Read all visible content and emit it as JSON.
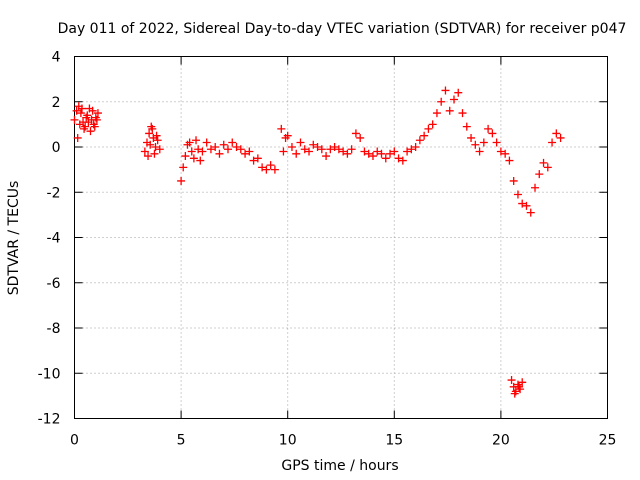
{
  "chart_data": {
    "type": "scatter",
    "title": "Day 011 of 2022, Sidereal Day-to-day VTEC variation (SDTVAR) for receiver p047",
    "xlabel": "GPS time / hours",
    "ylabel": "SDTVAR / TECUs",
    "xlim": [
      0,
      25
    ],
    "ylim": [
      -12,
      4
    ],
    "xticks": [
      0,
      5,
      10,
      15,
      20,
      25
    ],
    "yticks": [
      -12,
      -10,
      -8,
      -6,
      -4,
      -2,
      0,
      2,
      4
    ],
    "grid": true,
    "marker": "plus",
    "color": "#ff0000",
    "series": [
      {
        "name": "SDTVAR",
        "segments": [
          {
            "x": [
              0.0,
              0.1,
              0.2,
              0.3,
              0.4,
              0.5,
              0.6,
              0.7,
              0.8,
              0.9,
              1.0,
              1.1,
              0.15,
              0.25,
              0.35,
              0.45,
              0.55,
              0.65,
              0.75,
              0.85,
              0.95,
              1.05
            ],
            "y": [
              1.2,
              1.6,
              1.8,
              1.5,
              1.1,
              0.9,
              1.4,
              1.7,
              1.2,
              1.0,
              1.3,
              1.5,
              0.4,
              1.0,
              1.7,
              0.8,
              1.3,
              1.1,
              0.7,
              1.6,
              0.9,
              1.2
            ]
          },
          {
            "x": [
              3.3,
              3.4,
              3.5,
              3.6,
              3.7,
              3.8,
              3.9,
              4.0,
              3.45,
              3.55,
              3.65,
              3.75,
              3.85
            ],
            "y": [
              -0.2,
              0.2,
              0.6,
              0.9,
              0.4,
              0.0,
              0.3,
              -0.1,
              -0.4,
              0.1,
              0.8,
              -0.3,
              0.5
            ]
          },
          {
            "x": [
              5.0,
              5.1,
              5.2,
              5.3,
              5.4,
              5.5,
              5.6,
              5.7,
              5.8,
              5.9,
              6.0,
              6.2,
              6.4,
              6.6,
              6.8,
              7.0,
              7.2,
              7.4,
              7.6,
              7.8,
              8.0,
              8.2,
              8.4,
              8.6,
              8.8,
              9.0,
              9.2,
              9.4
            ],
            "y": [
              -1.5,
              -0.9,
              -0.4,
              0.1,
              0.2,
              -0.2,
              -0.5,
              0.3,
              -0.1,
              -0.6,
              -0.2,
              0.2,
              -0.1,
              0.0,
              -0.3,
              0.1,
              -0.1,
              0.2,
              0.0,
              -0.1,
              -0.3,
              -0.2,
              -0.6,
              -0.5,
              -0.9,
              -1.0,
              -0.8,
              -1.0
            ]
          },
          {
            "x": [
              9.7,
              9.8,
              9.9,
              10.0,
              10.2,
              10.4,
              10.6,
              10.8,
              11.0,
              11.2,
              11.4,
              11.6,
              11.8,
              12.0,
              12.2,
              12.4,
              12.6,
              12.8,
              13.0,
              13.2,
              13.4,
              13.6,
              13.8,
              14.0,
              14.2,
              14.4,
              14.6,
              14.8,
              15.0,
              15.2,
              15.4,
              15.6,
              15.8,
              16.0,
              16.2,
              16.4,
              16.6,
              16.8,
              17.0,
              17.2,
              17.4,
              17.6,
              17.8,
              18.0,
              18.2,
              18.4,
              18.6,
              18.8,
              19.0,
              19.2,
              19.4,
              19.6,
              19.8,
              20.0,
              20.2,
              20.4,
              20.6,
              20.8,
              21.0,
              21.2,
              21.4,
              21.6,
              21.8,
              22.0,
              22.2,
              22.4,
              22.6,
              22.8
            ],
            "y": [
              0.8,
              -0.2,
              0.4,
              0.5,
              0.0,
              -0.3,
              0.2,
              -0.1,
              -0.2,
              0.1,
              0.0,
              -0.1,
              -0.4,
              -0.1,
              0.0,
              -0.1,
              -0.2,
              -0.3,
              -0.1,
              0.6,
              0.4,
              -0.2,
              -0.3,
              -0.4,
              -0.2,
              -0.3,
              -0.5,
              -0.3,
              -0.2,
              -0.5,
              -0.6,
              -0.2,
              -0.1,
              0.0,
              0.3,
              0.5,
              0.8,
              1.0,
              1.5,
              2.0,
              2.5,
              1.6,
              2.1,
              2.4,
              1.5,
              0.9,
              0.4,
              0.1,
              -0.2,
              0.2,
              0.8,
              0.6,
              0.2,
              -0.2,
              -0.3,
              -0.6,
              -1.5,
              -2.1,
              -2.5,
              -2.6,
              -2.9,
              -1.8,
              -1.2,
              -0.7,
              -0.9,
              0.2,
              0.6,
              0.4
            ]
          },
          {
            "x": [
              20.5,
              20.6,
              20.7,
              20.8,
              20.9,
              21.0,
              20.65,
              20.85
            ],
            "y": [
              -10.3,
              -10.6,
              -10.8,
              -10.5,
              -10.7,
              -10.4,
              -10.9,
              -10.6
            ]
          }
        ]
      }
    ]
  }
}
